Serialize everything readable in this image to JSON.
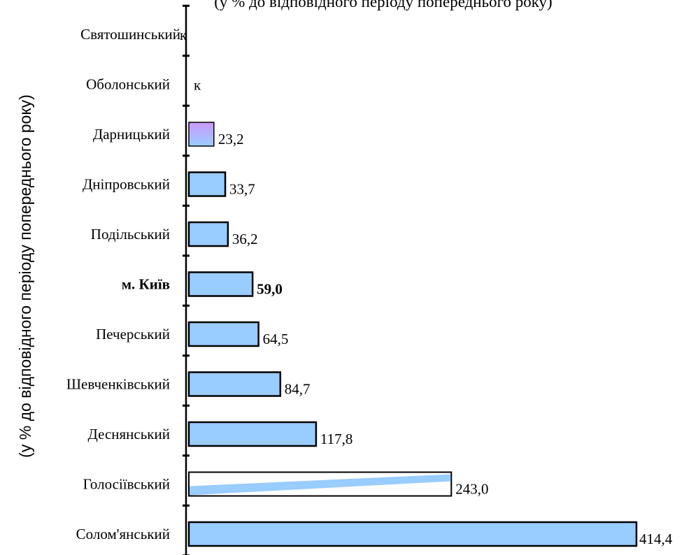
{
  "chart_data": {
    "type": "bar",
    "orientation": "horizontal",
    "title": "",
    "ylabel": "(у % до відповідного періоду попереднього року)",
    "title_partial": "(у % до відповідного періоду попереднього року)",
    "xlim": [
      0,
      414.4
    ],
    "grid": false,
    "legend": "none",
    "categories": [
      "Святошинський",
      "Оболонський",
      "Дарницький",
      "Дніпровський",
      "Подільський",
      "м. Київ",
      "Печерський",
      "Шевченківський",
      "Деснянський",
      "Голосіївський",
      "Солом'янський"
    ],
    "values": [
      null,
      null,
      23.2,
      33.7,
      36.2,
      59.0,
      64.5,
      84.7,
      117.8,
      243.0,
      414.4
    ],
    "value_labels": [
      "к",
      "к",
      "23,2",
      "33,7",
      "36,2",
      "59,0",
      "64,5",
      "84,7",
      "117,8",
      "243,0",
      "414,4"
    ],
    "highlight_category": "м. Київ",
    "colors": {
      "bar_fill": "#99ccff",
      "bar_outline": "#000000",
      "darnytskyi_gradient_top": "#cc99ff",
      "darnytskyi_gradient_bottom": "#99ccff"
    }
  }
}
